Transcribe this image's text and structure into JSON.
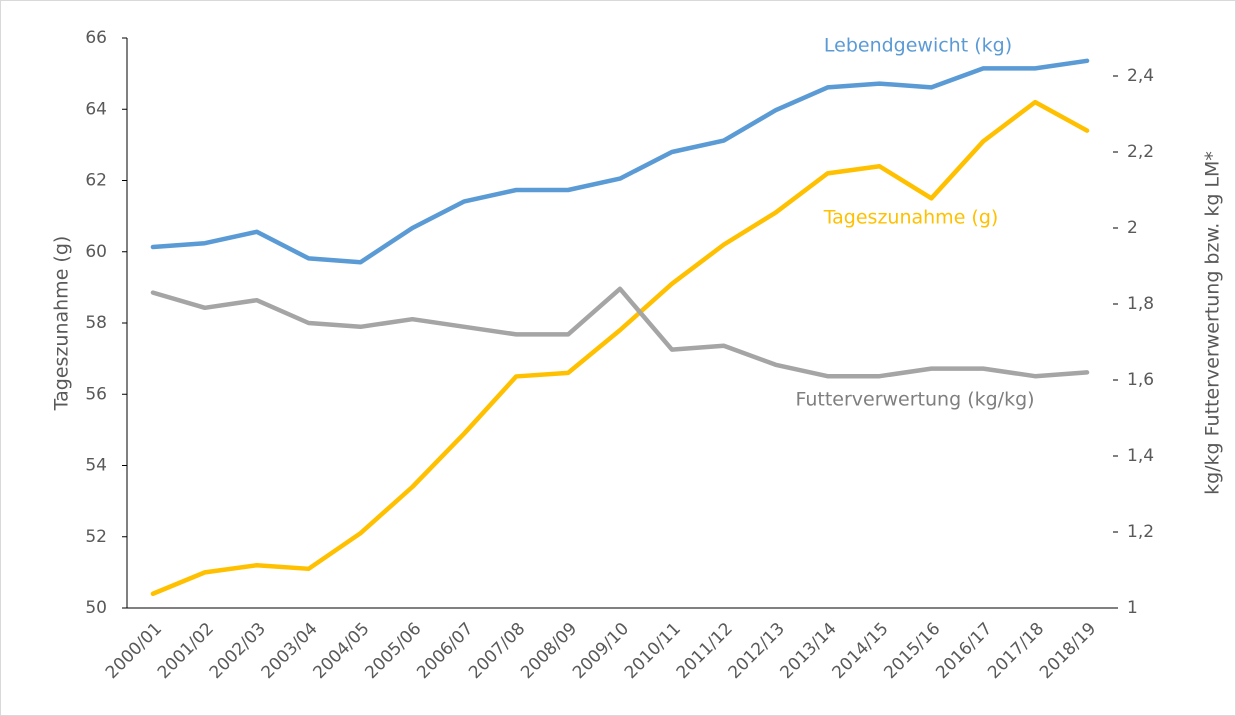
{
  "chart_data": {
    "type": "line",
    "categories": [
      "2000/01",
      "2001/02",
      "2002/03",
      "2003/04",
      "2004/05",
      "2005/06",
      "2006/07",
      "2007/08",
      "2008/09",
      "2009/10",
      "2010/11",
      "2011/12",
      "2012/13",
      "2013/14",
      "2014/15",
      "2015/16",
      "2016/17",
      "2017/18",
      "2018/19"
    ],
    "series": [
      {
        "name": "Lebendgewicht (kg)",
        "color": "#5b9bd5",
        "axis": "y2",
        "values": [
          1.95,
          1.96,
          1.99,
          1.92,
          1.91,
          2.0,
          2.07,
          2.1,
          2.1,
          2.13,
          2.2,
          2.23,
          2.31,
          2.37,
          2.38,
          2.37,
          2.42,
          2.42,
          2.44
        ]
      },
      {
        "name": "Tageszunahme (g)",
        "color": "#ffc000",
        "values": [
          50.4,
          51.0,
          51.2,
          51.1,
          52.1,
          53.4,
          54.9,
          56.5,
          56.6,
          57.8,
          59.1,
          60.2,
          61.1,
          62.2,
          62.4,
          61.5,
          63.1,
          64.2,
          63.4
        ]
      },
      {
        "name": "Futterverwertung (kg/kg)",
        "color": "#a5a5a5",
        "axis": "y2",
        "values": [
          1.83,
          1.79,
          1.81,
          1.75,
          1.74,
          1.76,
          1.74,
          1.72,
          1.72,
          1.84,
          1.68,
          1.69,
          1.64,
          1.61,
          1.61,
          1.63,
          1.63,
          1.61,
          1.62
        ]
      }
    ],
    "y_label": "Tageszunahme (g)",
    "y2_label": "kg/kg Futterverwertung bzw. kg LM*",
    "ylim": [
      50,
      66
    ],
    "yticks": [
      50,
      52,
      54,
      56,
      58,
      60,
      62,
      64,
      66
    ],
    "y2lim": [
      1,
      2.5
    ],
    "y2ticks": [
      1,
      {
        "value": 1.2,
        "label": "1,2"
      },
      {
        "value": 1.4,
        "label": "1,4"
      },
      {
        "value": 1.6,
        "label": "1,6"
      },
      {
        "value": 1.8,
        "label": "1,8"
      },
      2,
      {
        "value": 2.2,
        "label": "2,2"
      },
      {
        "value": 2.4,
        "label": "2,4"
      }
    ],
    "grid": false
  }
}
